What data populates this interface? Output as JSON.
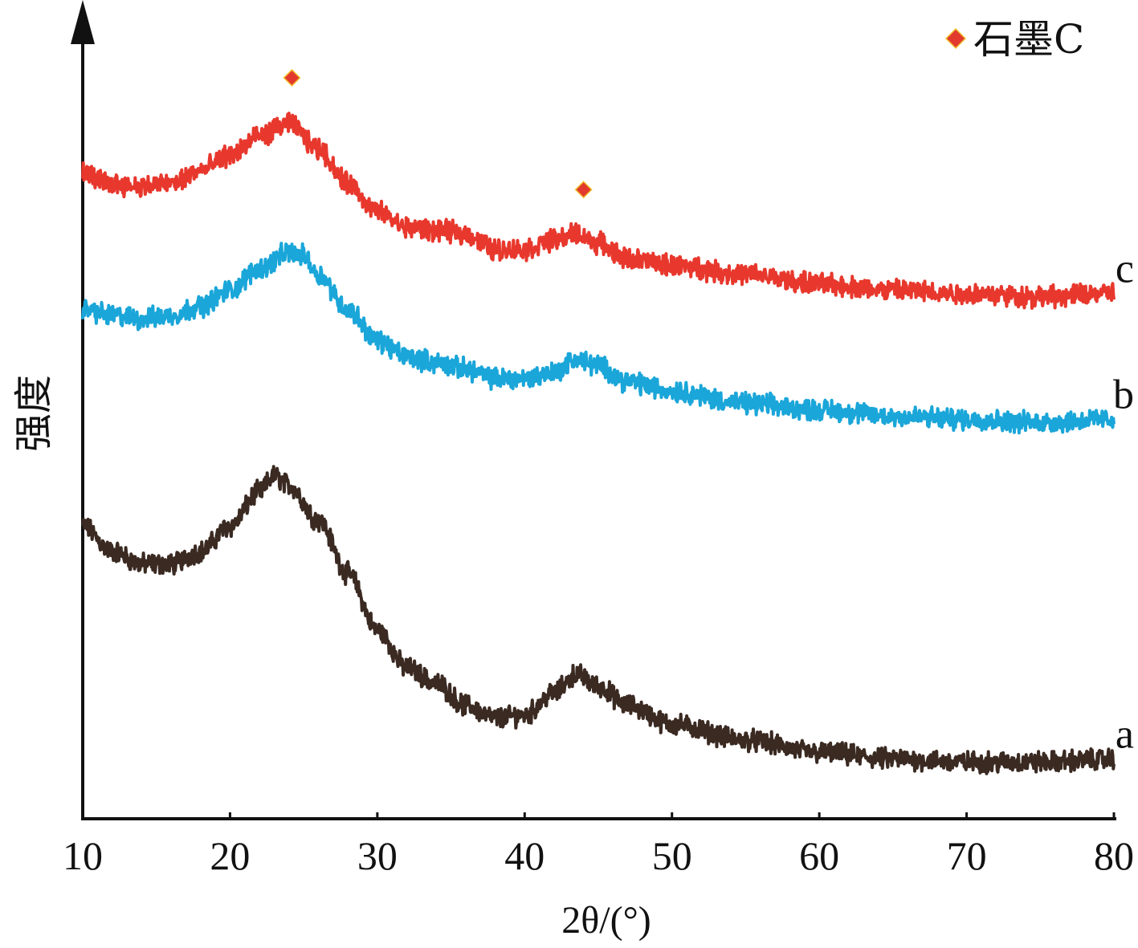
{
  "chart_data": {
    "type": "line",
    "title": "",
    "xlabel": "2θ/(°)",
    "ylabel": "强度",
    "xlim": [
      10,
      80
    ],
    "x_ticks": [
      "10",
      "20",
      "30",
      "40",
      "50",
      "60",
      "70",
      "80"
    ],
    "y_ticks_shown": false,
    "grid": false,
    "legend": {
      "placement": "top-right",
      "marker": "diamond",
      "marker_color": "#e23a2e",
      "label": "石墨C"
    },
    "colors": {
      "a": "#3a2a22",
      "b": "#1aa6d9",
      "c": "#e8382d",
      "marker": "#e23a2e",
      "axis": "#111111"
    },
    "note_units": "y values are relative intensity (arbitrary units, stacked offsets as drawn)",
    "series": [
      {
        "name": "a",
        "x": [
          10,
          12,
          14,
          16,
          18,
          20,
          22,
          23,
          24,
          26,
          28,
          30,
          32,
          34,
          36,
          38,
          40,
          42,
          43.5,
          45,
          47,
          50,
          55,
          60,
          65,
          70,
          75,
          80
        ],
        "y": [
          0.93,
          0.85,
          0.81,
          0.81,
          0.85,
          0.93,
          1.04,
          1.09,
          1.06,
          0.95,
          0.78,
          0.6,
          0.48,
          0.43,
          0.36,
          0.32,
          0.33,
          0.4,
          0.46,
          0.42,
          0.36,
          0.3,
          0.25,
          0.21,
          0.19,
          0.18,
          0.18,
          0.19
        ]
      },
      {
        "name": "b",
        "x": [
          10,
          12,
          14,
          16,
          18,
          20,
          22,
          24,
          25,
          26,
          28,
          30,
          32,
          34,
          36,
          38,
          40,
          42,
          43.5,
          45,
          47,
          50,
          55,
          60,
          65,
          70,
          75,
          80
        ],
        "y": [
          1.62,
          1.6,
          1.59,
          1.6,
          1.63,
          1.68,
          1.75,
          1.8,
          1.79,
          1.73,
          1.62,
          1.52,
          1.47,
          1.45,
          1.43,
          1.4,
          1.4,
          1.42,
          1.46,
          1.44,
          1.39,
          1.36,
          1.32,
          1.3,
          1.28,
          1.27,
          1.26,
          1.27
        ]
      },
      {
        "name": "c",
        "x": [
          10,
          12,
          14,
          16,
          18,
          20,
          22,
          24,
          26,
          28,
          30,
          32,
          34,
          36,
          38,
          40,
          42,
          43.5,
          45,
          47,
          50,
          55,
          60,
          65,
          70,
          75,
          80
        ],
        "y": [
          2.05,
          2.02,
          2.01,
          2.02,
          2.06,
          2.11,
          2.17,
          2.21,
          2.13,
          2.02,
          1.93,
          1.88,
          1.87,
          1.86,
          1.81,
          1.81,
          1.84,
          1.86,
          1.83,
          1.78,
          1.76,
          1.73,
          1.7,
          1.68,
          1.67,
          1.66,
          1.67
        ]
      }
    ],
    "peak_markers": [
      {
        "series": "c",
        "x": 24.2
      },
      {
        "series": "c",
        "x": 44.0
      }
    ],
    "series_labels": [
      "a",
      "b",
      "c"
    ]
  }
}
